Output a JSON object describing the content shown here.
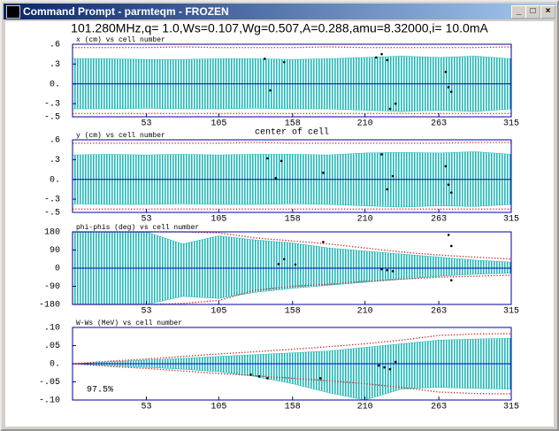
{
  "window": {
    "title": "Command Prompt - parmteqm - FROZEN"
  },
  "header": "101.280MHz,q= 1.0,Ws=0.107,Wg=0.507,A=0.288,amu=8.32000,i= 10.0mA",
  "chart_data": [
    {
      "type": "scatter",
      "title": "x (cm) vs cell number",
      "xlabel": "center of cell",
      "xlim": [
        0,
        315
      ],
      "xticks": [
        53,
        105,
        158,
        210,
        263,
        315
      ],
      "ylim": [
        -0.5,
        0.6
      ],
      "yticks": [
        {
          "value": 0.6,
          "label": ".6"
        },
        {
          "value": 0.3,
          "label": ".3"
        },
        {
          "value": 0,
          "label": "0."
        },
        {
          "value": -0.3,
          "label": "-.3"
        },
        {
          "value": -0.5,
          "label": "-.5"
        }
      ],
      "x": [
        0,
        26,
        53,
        79,
        105,
        131,
        158,
        184,
        210,
        236,
        263,
        289,
        315
      ],
      "band": {
        "color": "#20b8b8",
        "upper": [
          0.38,
          0.38,
          0.37,
          0.37,
          0.38,
          0.38,
          0.37,
          0.38,
          0.4,
          0.42,
          0.4,
          0.42,
          0.38
        ],
        "lower": [
          -0.38,
          -0.38,
          -0.37,
          -0.38,
          -0.38,
          -0.37,
          -0.38,
          -0.38,
          -0.4,
          -0.42,
          -0.4,
          -0.42,
          -0.38
        ]
      },
      "series": [
        {
          "color": "#d02020",
          "values": [
            0.55,
            0.55,
            0.55,
            0.56,
            0.55,
            0.55,
            0.55,
            0.56,
            0.55,
            0.55,
            0.55,
            0.55,
            0.56
          ]
        },
        {
          "color": "#d02020",
          "values": [
            -0.45,
            -0.45,
            -0.45,
            -0.45,
            -0.45,
            -0.45,
            -0.45,
            -0.45,
            -0.45,
            -0.45,
            -0.45,
            -0.45,
            -0.45
          ]
        }
      ],
      "points": {
        "color": "#000000",
        "x": [
          138,
          142,
          152,
          218,
          222,
          226,
          228,
          232,
          268,
          270,
          272
        ],
        "values": [
          0.38,
          -0.1,
          0.33,
          0.4,
          0.45,
          0.36,
          -0.38,
          -0.3,
          0.18,
          -0.05,
          -0.12
        ]
      }
    },
    {
      "type": "scatter",
      "title": "y (cm) vs cell number",
      "xlim": [
        0,
        315
      ],
      "xticks": [
        53,
        105,
        158,
        210,
        263,
        315
      ],
      "ylim": [
        -0.5,
        0.6
      ],
      "yticks": [
        {
          "value": 0.6,
          "label": ".6"
        },
        {
          "value": 0.3,
          "label": ".3"
        },
        {
          "value": 0,
          "label": "0."
        },
        {
          "value": -0.3,
          "label": "-.3"
        },
        {
          "value": -0.5,
          "label": "-.5"
        }
      ],
      "x": [
        0,
        26,
        53,
        79,
        105,
        131,
        158,
        184,
        210,
        236,
        263,
        289,
        315
      ],
      "band": {
        "color": "#20b8b8",
        "upper": [
          0.37,
          0.38,
          0.37,
          0.38,
          0.37,
          0.38,
          0.38,
          0.37,
          0.4,
          0.41,
          0.4,
          0.42,
          0.38
        ],
        "lower": [
          -0.37,
          -0.38,
          -0.38,
          -0.37,
          -0.38,
          -0.38,
          -0.37,
          -0.38,
          -0.4,
          -0.42,
          -0.4,
          -0.41,
          -0.38
        ]
      },
      "series": [
        {
          "color": "#d02020",
          "values": [
            0.55,
            0.55,
            0.55,
            0.55,
            0.55,
            0.56,
            0.55,
            0.55,
            0.55,
            0.55,
            0.55,
            0.56,
            0.56
          ]
        },
        {
          "color": "#d02020",
          "values": [
            -0.45,
            -0.45,
            -0.45,
            -0.45,
            -0.45,
            -0.45,
            -0.45,
            -0.45,
            -0.45,
            -0.45,
            -0.45,
            -0.45,
            -0.45
          ]
        }
      ],
      "points": {
        "color": "#000000",
        "x": [
          140,
          146,
          150,
          180,
          222,
          226,
          230,
          268,
          270,
          272
        ],
        "values": [
          0.32,
          0.02,
          0.28,
          0.1,
          0.38,
          -0.15,
          0.05,
          0.2,
          -0.08,
          -0.2
        ]
      }
    },
    {
      "type": "scatter",
      "title": "phi-phis (deg) vs cell number",
      "xlim": [
        0,
        315
      ],
      "xticks": [
        53,
        105,
        158,
        210,
        263,
        315
      ],
      "ylim": [
        -180,
        180
      ],
      "yticks": [
        180,
        90,
        0,
        -90,
        -180
      ],
      "x": [
        0,
        26,
        53,
        79,
        105,
        131,
        158,
        184,
        210,
        236,
        263,
        289,
        315
      ],
      "band": {
        "color": "#20b8b8",
        "upper": [
          180,
          180,
          180,
          120,
          160,
          140,
          125,
          100,
          85,
          70,
          55,
          40,
          30
        ],
        "lower": [
          -180,
          -180,
          -180,
          -140,
          -150,
          -120,
          -100,
          -85,
          -70,
          -55,
          -40,
          -30,
          -25
        ]
      },
      "series": [
        {
          "color": "#d02020",
          "values": [
            180,
            180,
            180,
            180,
            175,
            150,
            135,
            120,
            100,
            80,
            65,
            55,
            45
          ]
        },
        {
          "color": "#d02020",
          "values": [
            -180,
            -180,
            -180,
            -175,
            -160,
            -110,
            -90,
            -80,
            -65,
            -55,
            -45,
            -40,
            -35
          ]
        }
      ],
      "points": {
        "color": "#000000",
        "x": [
          148,
          152,
          160,
          180,
          222,
          226,
          230,
          270,
          272,
          272
        ],
        "values": [
          20,
          45,
          18,
          130,
          -5,
          -10,
          -15,
          165,
          -60,
          110
        ]
      }
    },
    {
      "type": "scatter",
      "title": "W-Ws (MeV) vs cell number",
      "annotation": "97.5%",
      "xlim": [
        0,
        315
      ],
      "xticks": [
        53,
        105,
        158,
        210,
        263,
        315
      ],
      "ylim": [
        -0.1,
        0.1
      ],
      "yticks": [
        {
          "value": 0.1,
          "label": ".10"
        },
        {
          "value": 0.05,
          "label": ".05"
        },
        {
          "value": 0,
          "label": "0."
        },
        {
          "value": -0.05,
          "label": "-.05"
        },
        {
          "value": -0.1,
          "label": "-.10"
        }
      ],
      "x": [
        0,
        26,
        53,
        79,
        105,
        131,
        158,
        184,
        210,
        236,
        263,
        289,
        315
      ],
      "band": {
        "color": "#20b8b8",
        "upper": [
          0,
          0.005,
          0.01,
          0.015,
          0.02,
          0.025,
          0.03,
          0.035,
          0.045,
          0.055,
          0.065,
          0.068,
          0.07
        ],
        "lower": [
          0,
          -0.005,
          -0.01,
          -0.015,
          -0.022,
          -0.035,
          -0.055,
          -0.08,
          -0.1,
          -0.07,
          -0.065,
          -0.068,
          -0.07
        ]
      },
      "series": [
        {
          "color": "#d02020",
          "values": [
            0,
            0.007,
            0.013,
            0.02,
            0.027,
            0.033,
            0.04,
            0.047,
            0.055,
            0.065,
            0.078,
            0.082,
            0.083
          ]
        },
        {
          "color": "#d02020",
          "values": [
            0,
            -0.007,
            -0.013,
            -0.02,
            -0.027,
            -0.033,
            -0.04,
            -0.047,
            -0.055,
            -0.065,
            -0.078,
            -0.082,
            -0.083
          ]
        }
      ],
      "points": {
        "color": "#000000",
        "x": [
          128,
          134,
          140,
          178,
          220,
          224,
          228,
          232
        ],
        "values": [
          -0.03,
          -0.035,
          -0.04,
          -0.04,
          -0.005,
          -0.01,
          -0.015,
          0.005
        ]
      }
    }
  ]
}
